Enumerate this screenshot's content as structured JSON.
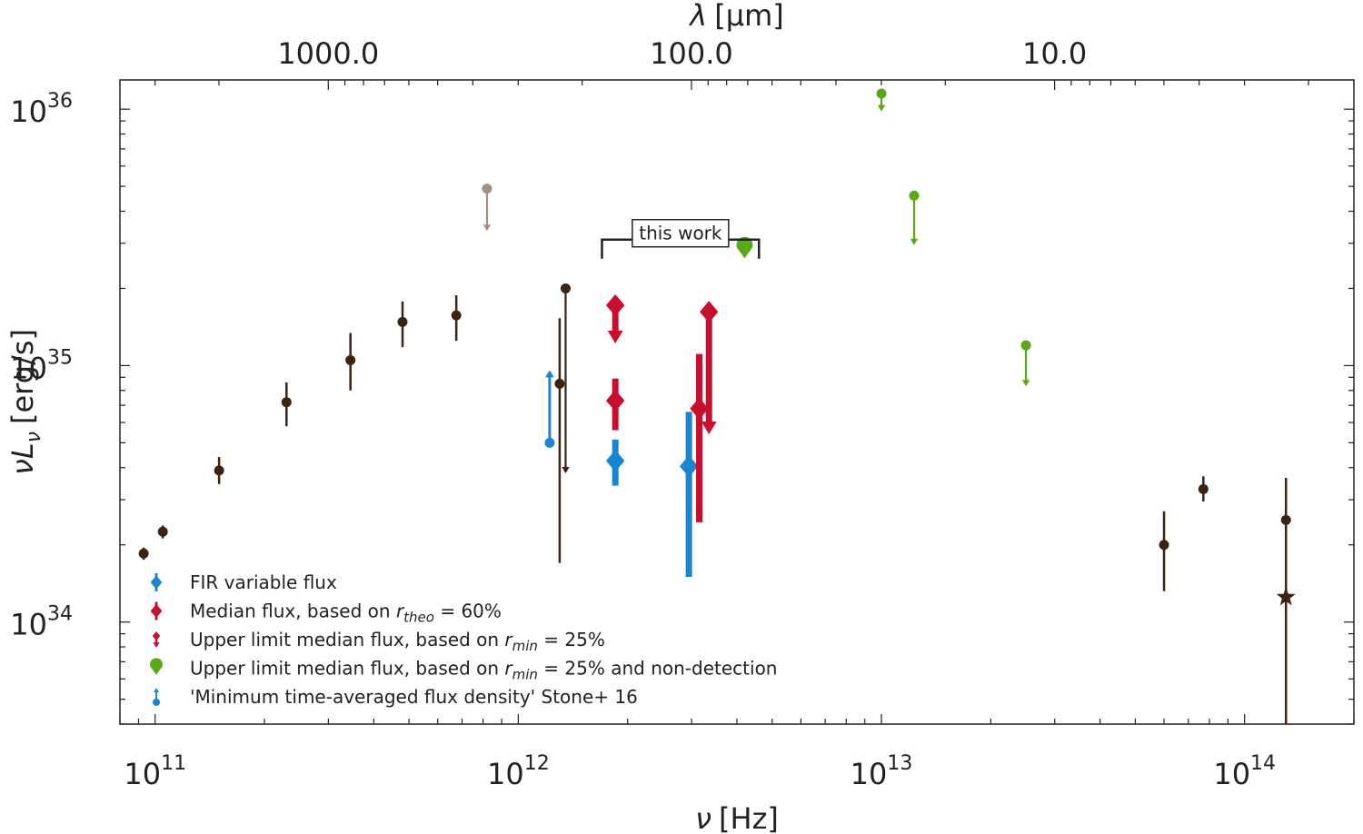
{
  "chart_data": {
    "type": "scatter",
    "title": "",
    "xlabel_prefix": "ν",
    "xlabel_unit": "[Hz]",
    "ylabel_prefix": "νL",
    "ylabel_sub": "ν",
    "ylabel_unit": "[erg/s]",
    "top_xlabel_prefix": "λ",
    "top_xlabel_unit": "[μm]",
    "xscale": "log",
    "yscale": "log",
    "xlim": [
      80000000000.0,
      200000000000000.0
    ],
    "ylim": [
      4e+33,
      1.3e+36
    ],
    "x_ticks": [
      {
        "value": 100000000000.0,
        "base": "10",
        "exp": "11"
      },
      {
        "value": 1000000000000.0,
        "base": "10",
        "exp": "12"
      },
      {
        "value": 10000000000000.0,
        "base": "10",
        "exp": "13"
      },
      {
        "value": 100000000000000.0,
        "base": "10",
        "exp": "14"
      }
    ],
    "y_ticks": [
      {
        "value": 1e+34,
        "base": "10",
        "exp": "34"
      },
      {
        "value": 1e+35,
        "base": "10",
        "exp": "35"
      },
      {
        "value": 1e+36,
        "base": "10",
        "exp": "36"
      }
    ],
    "top_ticks": [
      {
        "wavelength_um": 1000,
        "label": "1000.0"
      },
      {
        "wavelength_um": 100,
        "label": "100.0"
      },
      {
        "wavelength_um": 10,
        "label": "10.0"
      }
    ],
    "annotation": {
      "text": "this work",
      "x_range": [
        1700000000000.0,
        4600000000000.0
      ],
      "y": 3.1e+35
    },
    "series": [
      {
        "name": "Literature measurements",
        "color": "#3b2412",
        "marker": "circle",
        "points": [
          {
            "x": 93000000000.0,
            "y": 1.85e+34,
            "ylo": 1.75e+34,
            "yhi": 1.95e+34
          },
          {
            "x": 105000000000.0,
            "y": 2.25e+34,
            "ylo": 2.12e+34,
            "yhi": 2.38e+34
          },
          {
            "x": 150000000000.0,
            "y": 3.9e+34,
            "ylo": 3.45e+34,
            "yhi": 4.4e+34
          },
          {
            "x": 230000000000.0,
            "y": 7.2e+34,
            "ylo": 5.8e+34,
            "yhi": 8.6e+34
          },
          {
            "x": 345000000000.0,
            "y": 1.05e+35,
            "ylo": 8e+34,
            "yhi": 1.34e+35
          },
          {
            "x": 480000000000.0,
            "y": 1.48e+35,
            "ylo": 1.18e+35,
            "yhi": 1.78e+35
          },
          {
            "x": 675000000000.0,
            "y": 1.57e+35,
            "ylo": 1.25e+35,
            "yhi": 1.88e+35
          },
          {
            "x": 1300000000000.0,
            "y": 8.5e+34,
            "ylo": 1.7e+34,
            "yhi": 1.53e+35
          },
          {
            "x": 130000000000000.0,
            "y": 2.5e+34,
            "ylo": 4e+33,
            "yhi": 3.65e+34
          },
          {
            "x": 60000000000000.0,
            "y": 2e+34,
            "ylo": 1.32e+34,
            "yhi": 2.7e+34
          },
          {
            "x": 77000000000000.0,
            "y": 3.3e+34,
            "ylo": 2.95e+34,
            "yhi": 3.7e+34
          }
        ]
      },
      {
        "name": "Literature upper limits",
        "color": "#3b2412",
        "marker": "circle-arrow-down",
        "points": [
          {
            "x": 1350000000000.0,
            "y": 2e+35,
            "y_arrow": 3.8e+34
          }
        ]
      },
      {
        "name": "Literature star point",
        "color": "#3b2412",
        "marker": "star",
        "points": [
          {
            "x": 130000000000000.0,
            "y": 1.25e+34
          }
        ]
      },
      {
        "name": "Archival upper limit",
        "color": "#a09287",
        "marker": "circle-arrow-down",
        "points": [
          {
            "x": 820000000000.0,
            "y": 4.9e+35,
            "y_arrow": 3.35e+35
          }
        ]
      },
      {
        "name": "FIR variable flux",
        "color": "#1a86d0",
        "marker": "diamond",
        "points": [
          {
            "x": 1850000000000.0,
            "y": 4.25e+34,
            "ylo": 3.4e+34,
            "yhi": 5.15e+34
          },
          {
            "x": 2950000000000.0,
            "y": 4.05e+34,
            "ylo": 1.5e+34,
            "yhi": 6.6e+34
          }
        ]
      },
      {
        "name": "Median flux, based on r_theo = 60%",
        "color": "#c8102e",
        "marker": "diamond",
        "points": [
          {
            "x": 1850000000000.0,
            "y": 7.3e+34,
            "ylo": 5.6e+34,
            "yhi": 8.9e+34
          },
          {
            "x": 3150000000000.0,
            "y": 6.8e+34,
            "ylo": 2.45e+34,
            "yhi": 1.11e+35
          }
        ]
      },
      {
        "name": "Upper limit median flux, based on r_min = 25%",
        "color": "#c8102e",
        "marker": "diamond-arrow-down",
        "points": [
          {
            "x": 1850000000000.0,
            "y": 1.72e+35,
            "y_arrow": 1.22e+35
          },
          {
            "x": 3350000000000.0,
            "y": 1.62e+35,
            "y_arrow": 5.4e+34
          }
        ]
      },
      {
        "name": "Upper limit median flux, based on r_min = 25% and non-detection",
        "color": "#5ba816",
        "marker": "teardrop",
        "points": [
          {
            "x": 4200000000000.0,
            "y": 2.95e+35
          }
        ]
      },
      {
        "name": "Upper limits (green)",
        "color": "#5ba816",
        "marker": "circle-arrow-down",
        "points": [
          {
            "x": 10000000000000.0,
            "y": 1.15e+36,
            "y_arrow": 9.8e+35
          },
          {
            "x": 12300000000000.0,
            "y": 4.6e+35,
            "y_arrow": 2.95e+35
          },
          {
            "x": 25000000000000.0,
            "y": 1.2e+35,
            "y_arrow": 8.3e+34
          }
        ]
      },
      {
        "name": "'Minimum time-averaged flux density'  Stone+ 16",
        "color": "#1a86d0",
        "marker": "circle-arrow-up",
        "points": [
          {
            "x": 1220000000000.0,
            "y": 5e+34,
            "y_arrow": 9.6e+34
          }
        ]
      }
    ],
    "legend": {
      "placement": "lower-left",
      "entries": [
        {
          "label": "FIR variable flux",
          "color": "#1a86d0",
          "marker": "diamond-err",
          "parts": [
            {
              "t": "FIR variable flux"
            }
          ]
        },
        {
          "label": "Median flux, based on r_theo = 60%",
          "color": "#c8102e",
          "marker": "diamond-err",
          "parts": [
            {
              "t": "Median flux, based on "
            },
            {
              "t": "r",
              "italic": true
            },
            {
              "t": "theo",
              "sub": true,
              "italic": true
            },
            {
              "t": " = 60%"
            }
          ]
        },
        {
          "label": "Upper limit median flux, based on r_min = 25%",
          "color": "#c8102e",
          "marker": "diamond-small-arrow",
          "parts": [
            {
              "t": "Upper limit median flux, based on "
            },
            {
              "t": "r",
              "italic": true
            },
            {
              "t": "min",
              "sub": true,
              "italic": true
            },
            {
              "t": " = 25%"
            }
          ]
        },
        {
          "label": "Upper limit median flux, based on r_min = 25% and non-detection",
          "color": "#5ba816",
          "marker": "teardrop",
          "parts": [
            {
              "t": "Upper limit median flux, based on "
            },
            {
              "t": "r",
              "italic": true
            },
            {
              "t": "min",
              "sub": true,
              "italic": true
            },
            {
              "t": " = 25% and non-detection"
            }
          ]
        },
        {
          "label": "'Minimum time-averaged flux density'  Stone+ 16",
          "color": "#1a86d0",
          "marker": "circle-arrow-up",
          "parts": [
            {
              "t": "'Minimum time-averaged flux density'  Stone+ 16"
            }
          ]
        }
      ]
    }
  }
}
